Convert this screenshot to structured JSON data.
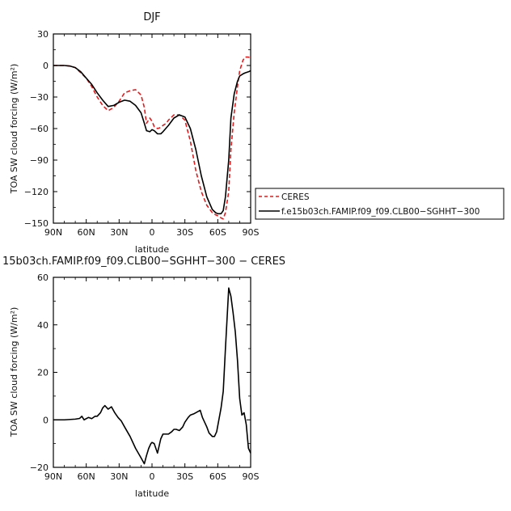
{
  "chart_data": [
    {
      "type": "line",
      "title": "DJF",
      "xlabel": "latitude",
      "ylabel": "TOA SW cloud forcing (W/m²)",
      "xlim": [
        90,
        -90
      ],
      "ylim": [
        -150,
        30
      ],
      "xticks": [
        90,
        60,
        30,
        0,
        -30,
        -60,
        -90
      ],
      "xtick_labels": [
        "90N",
        "60N",
        "30N",
        "0",
        "30S",
        "60S",
        "90S"
      ],
      "yticks": [
        30,
        0,
        -30,
        -60,
        -90,
        -120,
        -150
      ],
      "ytick_labels": [
        "30",
        "0",
        "−30",
        "−60",
        "−90",
        "−120",
        "−150"
      ],
      "legend_position": "right, outside plot",
      "series": [
        {
          "name": "CERES",
          "color": "#e41a1c",
          "dash": "dashed",
          "x": [
            90,
            80,
            75,
            70,
            65,
            60,
            55,
            50,
            45,
            40,
            35,
            30,
            25,
            20,
            15,
            10,
            7,
            5,
            2,
            0,
            -2,
            -5,
            -8,
            -10,
            -13,
            -15,
            -20,
            -25,
            -30,
            -35,
            -40,
            -45,
            -50,
            -55,
            -58,
            -60,
            -63,
            -65,
            -67,
            -70,
            -72,
            -75,
            -78,
            -80,
            -83,
            -85,
            -88,
            -90
          ],
          "y": [
            0,
            0,
            -0.5,
            -2,
            -7,
            -12,
            -20,
            -30,
            -38,
            -43,
            -40,
            -34,
            -26,
            -24,
            -23,
            -28,
            -40,
            -55,
            -50,
            -53,
            -58,
            -60,
            -59,
            -57,
            -55,
            -52,
            -47,
            -47,
            -52,
            -72,
            -100,
            -120,
            -133,
            -140,
            -142,
            -143,
            -145,
            -146,
            -140,
            -120,
            -80,
            -45,
            -20,
            -5,
            5,
            8,
            8,
            7
          ]
        },
        {
          "name": "f.e15b03ch.FAMIP.f09_f09.CLB00−SGHHT−300",
          "color": "#000000",
          "dash": "solid",
          "x": [
            90,
            80,
            75,
            70,
            65,
            60,
            55,
            50,
            45,
            40,
            35,
            30,
            25,
            20,
            15,
            10,
            7,
            5,
            2,
            0,
            -2,
            -5,
            -8,
            -10,
            -15,
            -20,
            -25,
            -30,
            -35,
            -40,
            -45,
            -50,
            -55,
            -58,
            -60,
            -63,
            -65,
            -67,
            -70,
            -72,
            -75,
            -78,
            -80,
            -83,
            -85,
            -88,
            -90
          ],
          "y": [
            0,
            0,
            -0.5,
            -2,
            -6,
            -12,
            -18,
            -26,
            -33,
            -39,
            -38,
            -35,
            -33,
            -34,
            -38,
            -45,
            -55,
            -62,
            -63,
            -61,
            -62,
            -65,
            -65,
            -63,
            -57,
            -50,
            -47,
            -49,
            -60,
            -80,
            -105,
            -125,
            -137,
            -140,
            -141,
            -141,
            -138,
            -125,
            -90,
            -50,
            -27,
            -15,
            -10,
            -8,
            -7,
            -6,
            -5
          ]
        }
      ]
    },
    {
      "type": "line",
      "title": "15b03ch.FAMIP.f09_f09.CLB00−SGHHT−300 − CERES",
      "xlabel": "latitude",
      "ylabel": "TOA SW cloud forcing (W/m²)",
      "xlim": [
        90,
        -90
      ],
      "ylim": [
        -20,
        60
      ],
      "xticks": [
        90,
        60,
        30,
        0,
        -30,
        -60,
        -90
      ],
      "xtick_labels": [
        "90N",
        "60N",
        "30N",
        "0",
        "30S",
        "60S",
        "90S"
      ],
      "yticks": [
        60,
        40,
        20,
        0,
        -20
      ],
      "ytick_labels": [
        "60",
        "40",
        "20",
        "0",
        "−20"
      ],
      "series": [
        {
          "color": "#000000",
          "dash": "solid",
          "x": [
            90,
            80,
            70,
            66,
            64,
            62,
            58,
            55,
            52,
            50,
            47,
            45,
            43,
            40,
            37,
            34,
            31,
            28,
            25,
            20,
            15,
            10,
            7,
            5,
            3,
            1,
            0,
            -2,
            -5,
            -8,
            -10,
            -12,
            -15,
            -18,
            -20,
            -22,
            -25,
            -28,
            -30,
            -33,
            -35,
            -38,
            -40,
            -42,
            -44,
            -46,
            -48,
            -50,
            -52,
            -55,
            -57,
            -59,
            -61,
            -63,
            -65,
            -67,
            -70,
            -72,
            -74,
            -76,
            -78,
            -80,
            -82,
            -84,
            -86,
            -88,
            -90
          ],
          "y": [
            0,
            0,
            0.3,
            0.6,
            1.5,
            0,
            1,
            0.5,
            1.5,
            1.5,
            3,
            5,
            6,
            4.5,
            5.5,
            3,
            1,
            -0.5,
            -3,
            -7,
            -12,
            -16,
            -18.5,
            -15,
            -12,
            -10,
            -9.5,
            -10,
            -14,
            -8,
            -6,
            -6,
            -6,
            -5,
            -4,
            -4,
            -4.5,
            -3,
            -1,
            1,
            2,
            2.5,
            3,
            3.5,
            4,
            1,
            -1,
            -3,
            -5.5,
            -7,
            -7,
            -5,
            0,
            5,
            12,
            30,
            55.5,
            52,
            45,
            37,
            25,
            9,
            2,
            3,
            -2,
            -12,
            -14
          ]
        }
      ]
    }
  ]
}
